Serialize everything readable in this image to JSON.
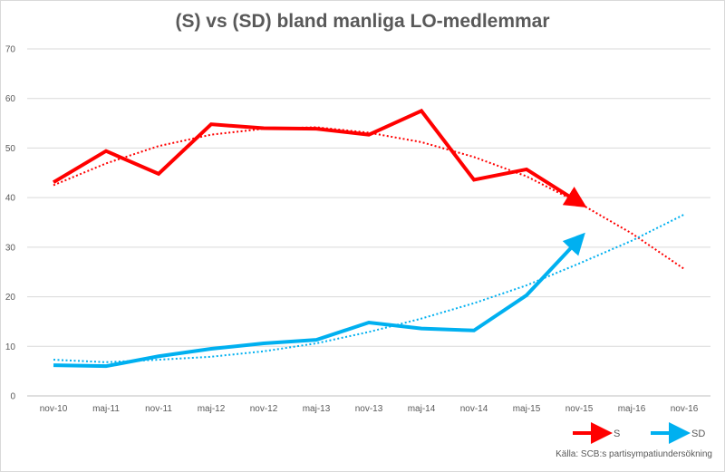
{
  "chart_data": {
    "type": "line",
    "title": "(S) vs (SD) bland manliga LO-medlemmar",
    "categories": [
      "nov-10",
      "maj-11",
      "nov-11",
      "maj-12",
      "nov-12",
      "maj-13",
      "nov-13",
      "maj-14",
      "nov-14",
      "maj-15",
      "nov-15",
      "maj-16",
      "nov-16"
    ],
    "ylim": [
      0,
      70
    ],
    "yticks": [
      "0",
      "10",
      "20",
      "30",
      "40",
      "50",
      "60",
      "70"
    ],
    "grid": true,
    "series": [
      {
        "name": "S",
        "color": "#ff0000",
        "values": [
          43.1,
          49.4,
          44.8,
          54.8,
          54.0,
          53.9,
          52.7,
          57.5,
          43.6,
          45.7,
          39.0,
          null,
          null
        ],
        "trend": [
          42.5,
          46.9,
          50.4,
          52.7,
          53.9,
          54.2,
          53.1,
          51.2,
          48.2,
          44.3,
          38.9,
          32.8,
          25.6
        ]
      },
      {
        "name": "SD",
        "color": "#00b0f0",
        "values": [
          6.2,
          6.0,
          8.0,
          9.5,
          10.6,
          11.3,
          14.8,
          13.6,
          13.2,
          20.3,
          31.6,
          null,
          null
        ],
        "trend": [
          7.3,
          6.8,
          7.3,
          7.9,
          9.0,
          10.6,
          12.9,
          15.6,
          18.7,
          22.3,
          26.7,
          31.3,
          36.6
        ]
      }
    ],
    "legend": "bottom-right",
    "source": "Källa: SCB:s partisympatiundersökning"
  }
}
